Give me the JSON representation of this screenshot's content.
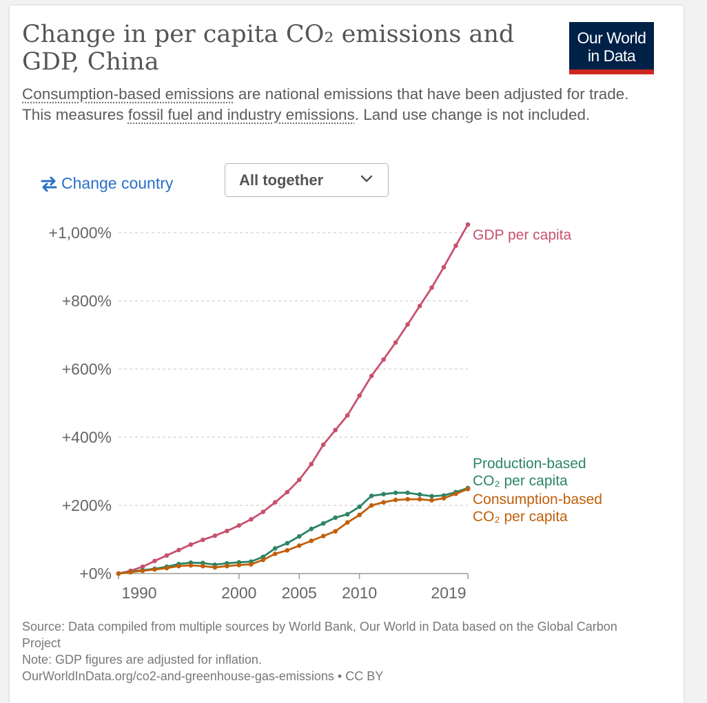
{
  "title_main": "Change in per capita CO",
  "title_sub2": "₂",
  "title_rest": " emissions and",
  "title_line2": "GDP, China",
  "logo": {
    "line1": "Our World",
    "line2": "in Data",
    "bg": "#002147",
    "accent": "#ce261e"
  },
  "subtitle": {
    "link1": "Consumption-based emissions",
    "text1": " are national emissions that have been adjusted for trade. This measures ",
    "link2": "fossil fuel and industry emissions",
    "text2": ". Land use change is not included."
  },
  "controls": {
    "change_country_label": "Change country",
    "change_country_icon": "swap-arrows-icon",
    "dropdown_value": "All together",
    "dropdown_icon": "chevron-down-icon"
  },
  "footer": {
    "source": "Source: Data compiled from multiple sources by World Bank, Our World in Data based on the Global Carbon Project",
    "note": "Note: GDP figures are adjusted for inflation.",
    "url": "OurWorldInData.org/co2-and-greenhouse-gas-emissions • CC BY"
  },
  "chart_data": {
    "type": "line",
    "title": "Change in per capita CO₂ emissions and GDP, China",
    "xlabel": "",
    "ylabel": "",
    "xlim": [
      1990,
      2019
    ],
    "ylim": [
      0,
      1000
    ],
    "grid": true,
    "legend": "end-of-line labels",
    "x_ticks": [
      {
        "value": 1990,
        "label": "1990"
      },
      {
        "value": 2000,
        "label": "2000"
      },
      {
        "value": 2005,
        "label": "2005"
      },
      {
        "value": 2010,
        "label": "2010"
      },
      {
        "value": 2019,
        "label": "2019"
      }
    ],
    "y_ticks": [
      {
        "value": 0,
        "label": "+0%"
      },
      {
        "value": 200,
        "label": "+200%"
      },
      {
        "value": 400,
        "label": "+400%"
      },
      {
        "value": 600,
        "label": "+600%"
      },
      {
        "value": 800,
        "label": "+800%"
      },
      {
        "value": 1000,
        "label": "+1,000%"
      }
    ],
    "x": [
      1990,
      1991,
      1992,
      1993,
      1994,
      1995,
      1996,
      1997,
      1998,
      1999,
      2000,
      2001,
      2002,
      2003,
      2004,
      2005,
      2006,
      2007,
      2008,
      2009,
      2010,
      2011,
      2012,
      2013,
      2014,
      2015,
      2016,
      2017,
      2018,
      2019
    ],
    "series": [
      {
        "name": "GDP per capita",
        "label_lines": [
          "GDP per capita"
        ],
        "color": "#c8516e",
        "values": [
          0,
          8,
          20,
          37,
          53,
          69,
          85,
          99,
          111,
          125,
          141,
          159,
          181,
          209,
          239,
          275,
          321,
          378,
          421,
          464,
          522,
          580,
          628,
          678,
          731,
          785,
          839,
          899,
          962,
          1024
        ]
      },
      {
        "name": "Production-based CO₂ per capita",
        "label_lines": [
          "Production-based",
          "CO₂ per capita"
        ],
        "color": "#2c8465",
        "values": [
          0,
          5,
          10,
          14,
          20,
          28,
          32,
          31,
          26,
          30,
          33,
          35,
          49,
          74,
          89,
          109,
          131,
          147,
          164,
          174,
          196,
          228,
          233,
          237,
          237,
          232,
          227,
          229,
          239,
          251
        ]
      },
      {
        "name": "Consumption-based CO₂ per capita",
        "label_lines": [
          "Consumption-based",
          "CO₂ per capita"
        ],
        "color": "#c15f0a",
        "values": [
          0,
          4,
          8,
          12,
          16,
          22,
          24,
          22,
          18,
          22,
          25,
          27,
          40,
          58,
          68,
          82,
          96,
          110,
          124,
          150,
          172,
          200,
          209,
          216,
          218,
          218,
          215,
          221,
          234,
          248
        ]
      }
    ]
  }
}
